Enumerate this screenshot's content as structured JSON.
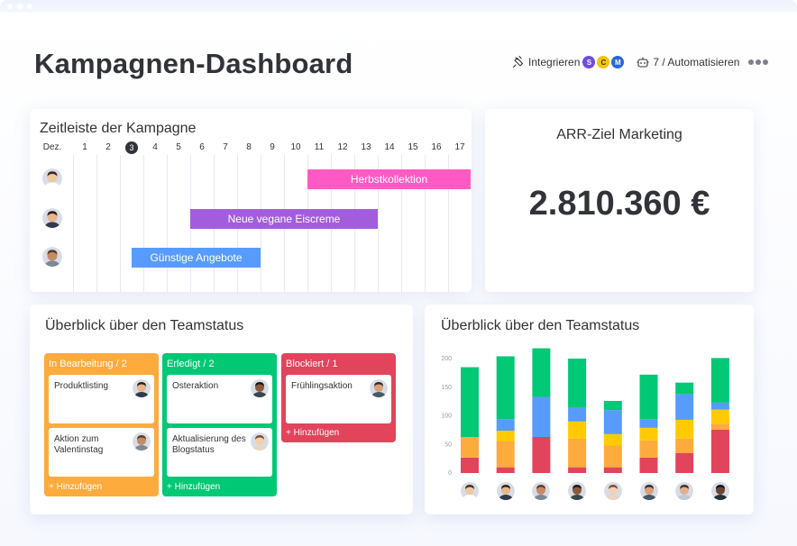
{
  "window": {
    "dots": 3
  },
  "page_title": "Kampagnen-Dashboard",
  "actions": {
    "integrate_label": "Integrieren",
    "integrate_icon": "plug-icon",
    "apps": [
      {
        "name": "app-s-icon",
        "letter": "S",
        "color": "#6f4cdb"
      },
      {
        "name": "app-c-icon",
        "letter": "C",
        "color": "#f5c400"
      },
      {
        "name": "app-mail-icon",
        "letter": "M",
        "color": "#2b67d6"
      }
    ],
    "automation_label": "7 / Automatisieren",
    "automation_icon": "robot-icon",
    "more_icon": "more-dots-icon"
  },
  "timeline": {
    "title": "Zeitleiste der Kampagne",
    "month_label": "Dez.",
    "days": [
      "1",
      "2",
      "3",
      "4",
      "5",
      "6",
      "7",
      "8",
      "9",
      "10",
      "11",
      "12",
      "13",
      "14",
      "15",
      "16",
      "17"
    ],
    "today": "3",
    "bars": [
      {
        "label": "Herbstkollektion",
        "color": "#ff5ac4",
        "start_day": 11,
        "end_day": 18
      },
      {
        "label": "Neue vegane Eiscreme",
        "color": "#a25ddc",
        "start_day": 6,
        "end_day": 14
      },
      {
        "label": "Günstige Angebote",
        "color": "#579bfc",
        "start_day": 3.5,
        "end_day": 9
      }
    ]
  },
  "arr": {
    "title": "ARR-Ziel Marketing",
    "value": "2.810.360 €"
  },
  "kanban": {
    "title": "Überblick über den Teamstatus",
    "columns": [
      {
        "title": "In Bearbeitung / 2",
        "color": "#fdab3d",
        "items": [
          "Produktlisting",
          "Aktion zum Valentinstag"
        ],
        "add_label": "+ Hinzufügen"
      },
      {
        "title": "Erledigt / 2",
        "color": "#00c875",
        "items": [
          "Osteraktion",
          "Aktualisierung des Blogstatus"
        ],
        "add_label": "+ Hinzufügen"
      },
      {
        "title": "Blockiert / 1",
        "color": "#e2445c",
        "items": [
          "Frühlingsaktion"
        ],
        "add_label": "+ Hinzufügen"
      }
    ]
  },
  "chart_data": {
    "type": "bar",
    "title": "Überblick über den Teamstatus",
    "stacked": true,
    "y_ticks": [
      "0",
      "50",
      "100",
      "150",
      "200"
    ],
    "ylim": [
      0,
      200
    ],
    "categories": [
      "Person 1",
      "Person 2",
      "Person 3",
      "Person 4",
      "Person 5",
      "Person 6",
      "Person 7",
      "Person 8"
    ],
    "series": [
      {
        "color": "#e2445c",
        "values": [
          27,
          10,
          63,
          10,
          10,
          27,
          35,
          76
        ]
      },
      {
        "color": "#fdab3d",
        "values": [
          36,
          46,
          0,
          50,
          38,
          30,
          25,
          10
        ]
      },
      {
        "color": "#ffcb00",
        "values": [
          0,
          18,
          0,
          30,
          20,
          22,
          33,
          25
        ]
      },
      {
        "color": "#579bfc",
        "values": [
          0,
          20,
          70,
          25,
          42,
          15,
          45,
          12
        ]
      },
      {
        "color": "#00c875",
        "values": [
          122,
          110,
          85,
          85,
          16,
          78,
          20,
          78
        ]
      }
    ],
    "grid": false,
    "legend": "none"
  },
  "colors": {
    "accent": "#0073ea",
    "orange": "#fdab3d",
    "green": "#00c875",
    "red": "#e2445c",
    "purple": "#a25ddc",
    "pink": "#ff5ac4",
    "blue": "#579bfc"
  }
}
